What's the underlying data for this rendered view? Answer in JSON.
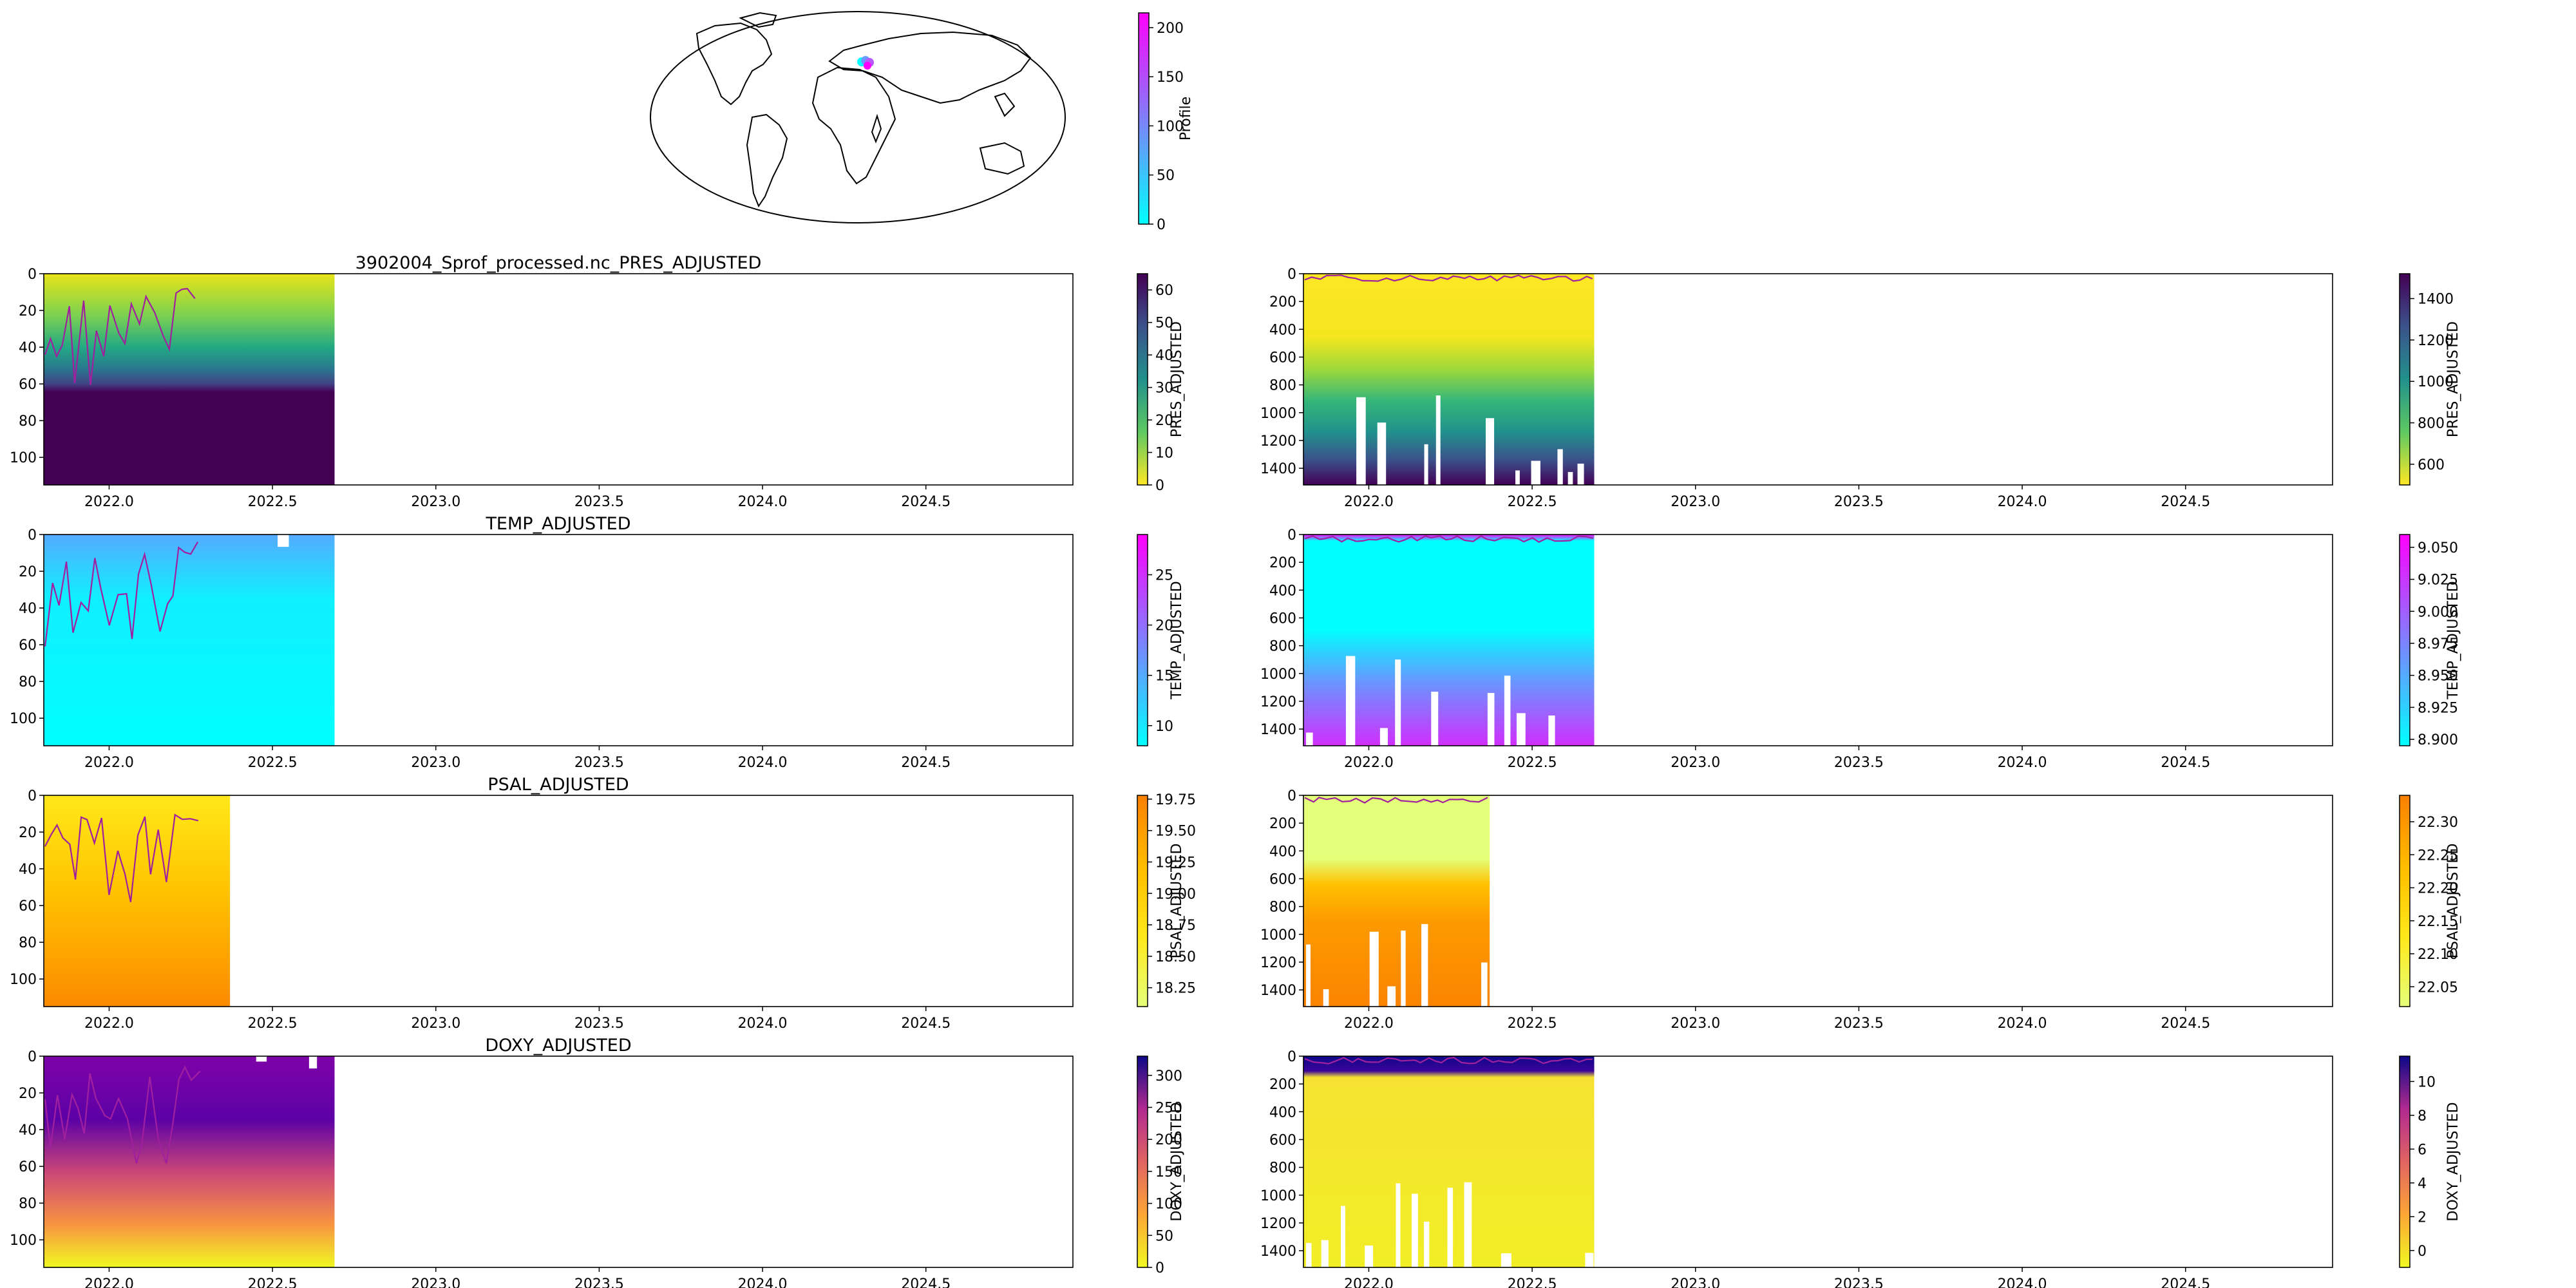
{
  "map": {
    "colorbar": {
      "label": "Profile",
      "ticks": [
        "0",
        "50",
        "100",
        "150",
        "200"
      ],
      "range": [
        0,
        215
      ],
      "colors": [
        "#00ffff",
        "#ff00ff"
      ]
    }
  },
  "x_ticks": [
    "2022.0",
    "2022.5",
    "2023.0",
    "2023.5",
    "2024.0",
    "2024.5"
  ],
  "chart_data": [
    {
      "type": "heatmap",
      "variable": "PRES_ADJUSTED",
      "panel": "shallow",
      "title": "3902004_Sprof_processed.nc_PRES_ADJUSTED",
      "y_ticks": [
        "0",
        "20",
        "40",
        "60",
        "80",
        "100"
      ],
      "ylim": [
        115,
        0
      ],
      "xlim": [
        2021.8,
        2024.95
      ],
      "data_x_end": 2022.69,
      "colorbar": {
        "label": "PRES_ADJUSTED",
        "ticks": [
          "0",
          "10",
          "20",
          "30",
          "40",
          "50",
          "60"
        ],
        "range": [
          0,
          65
        ],
        "cmap": "viridis_r"
      }
    },
    {
      "type": "heatmap",
      "variable": "PRES_ADJUSTED",
      "panel": "deep",
      "title": "",
      "y_ticks": [
        "0",
        "200",
        "400",
        "600",
        "800",
        "1000",
        "1200",
        "1400"
      ],
      "ylim": [
        1520,
        0
      ],
      "xlim": [
        2021.8,
        2024.95
      ],
      "data_x_end": 2022.69,
      "colorbar": {
        "label": "PRES_ADJUSTED",
        "ticks": [
          "600",
          "800",
          "1000",
          "1200",
          "1400"
        ],
        "range": [
          500,
          1520
        ],
        "cmap": "viridis_r"
      }
    },
    {
      "type": "heatmap",
      "variable": "TEMP_ADJUSTED",
      "panel": "shallow",
      "title": "TEMP_ADJUSTED",
      "y_ticks": [
        "0",
        "20",
        "40",
        "60",
        "80",
        "100"
      ],
      "ylim": [
        115,
        0
      ],
      "xlim": [
        2021.8,
        2024.95
      ],
      "data_x_end": 2022.69,
      "colorbar": {
        "label": "TEMP_ADJUSTED",
        "ticks": [
          "10",
          "15",
          "20",
          "25"
        ],
        "range": [
          8,
          29
        ],
        "cmap": "cool"
      }
    },
    {
      "type": "heatmap",
      "variable": "TEMP_ADJUSTED",
      "panel": "deep",
      "title": "",
      "y_ticks": [
        "0",
        "200",
        "400",
        "600",
        "800",
        "1000",
        "1200",
        "1400"
      ],
      "ylim": [
        1520,
        0
      ],
      "xlim": [
        2021.8,
        2024.95
      ],
      "data_x_end": 2022.69,
      "colorbar": {
        "label": "TEMP_ADJUSTED",
        "ticks": [
          "8.900",
          "8.925",
          "8.950",
          "8.975",
          "9.000",
          "9.025",
          "9.050"
        ],
        "range": [
          8.895,
          9.06
        ],
        "cmap": "cool"
      }
    },
    {
      "type": "heatmap",
      "variable": "PSAL_ADJUSTED",
      "panel": "shallow",
      "title": "PSAL_ADJUSTED",
      "y_ticks": [
        "0",
        "20",
        "40",
        "60",
        "80",
        "100"
      ],
      "ylim": [
        115,
        0
      ],
      "xlim": [
        2021.8,
        2024.95
      ],
      "data_x_end": 2022.37,
      "colorbar": {
        "label": "PSAL_ADJUSTED",
        "ticks": [
          "18.25",
          "18.50",
          "18.75",
          "19.00",
          "19.25",
          "19.50",
          "19.75"
        ],
        "range": [
          18.1,
          19.78
        ],
        "cmap": "Wistia"
      }
    },
    {
      "type": "heatmap",
      "variable": "PSAL_ADJUSTED",
      "panel": "deep",
      "title": "",
      "y_ticks": [
        "0",
        "200",
        "400",
        "600",
        "800",
        "1000",
        "1200",
        "1400"
      ],
      "ylim": [
        1520,
        0
      ],
      "xlim": [
        2021.8,
        2024.95
      ],
      "data_x_end": 2022.37,
      "colorbar": {
        "label": "PSAL_ADJUSTED",
        "ticks": [
          "22.05",
          "22.10",
          "22.15",
          "22.20",
          "22.25",
          "22.30"
        ],
        "range": [
          22.02,
          22.34
        ],
        "cmap": "Wistia"
      }
    },
    {
      "type": "heatmap",
      "variable": "DOXY_ADJUSTED",
      "panel": "shallow",
      "title": "DOXY_ADJUSTED",
      "y_ticks": [
        "0",
        "20",
        "40",
        "60",
        "80",
        "100"
      ],
      "ylim": [
        115,
        0
      ],
      "xlim": [
        2021.8,
        2024.95
      ],
      "data_x_end": 2022.69,
      "colorbar": {
        "label": "DOXY_ADJUSTED",
        "ticks": [
          "0",
          "50",
          "100",
          "150",
          "200",
          "250",
          "300"
        ],
        "range": [
          0,
          330
        ],
        "cmap": "plasma_r"
      }
    },
    {
      "type": "heatmap",
      "variable": "DOXY_ADJUSTED",
      "panel": "deep",
      "title": "",
      "y_ticks": [
        "0",
        "200",
        "400",
        "600",
        "800",
        "1000",
        "1200",
        "1400"
      ],
      "ylim": [
        1520,
        0
      ],
      "xlim": [
        2021.8,
        2024.95
      ],
      "data_x_end": 2022.69,
      "colorbar": {
        "label": "DOXY_ADJUSTED",
        "ticks": [
          "0",
          "2",
          "4",
          "6",
          "8",
          "10"
        ],
        "range": [
          -1,
          11.5
        ],
        "cmap": "plasma_r"
      }
    }
  ]
}
